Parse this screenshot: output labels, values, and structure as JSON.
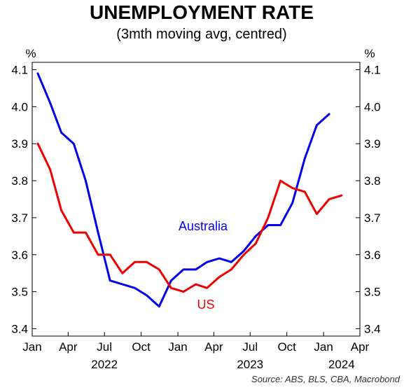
{
  "chart_data": {
    "type": "line",
    "title": "UNEMPLOYMENT RATE",
    "subtitle": "(3mth moving avg, centred)",
    "ylabel_left": "%",
    "ylabel_right": "%",
    "source": "Source: ABS, BLS, CBA, Macrobond",
    "ylim": [
      3.38,
      4.12
    ],
    "yticks": [
      3.4,
      3.5,
      3.6,
      3.7,
      3.8,
      3.9,
      4.0,
      4.1
    ],
    "ytick_labels": [
      "3.4",
      "3.5",
      "3.6",
      "3.7",
      "3.8",
      "3.9",
      "4.0",
      "4.1"
    ],
    "xlim": [
      "2022-01-01",
      "2024-04-01"
    ],
    "xticks": [
      {
        "date": "2022-01-01",
        "label": "Jan"
      },
      {
        "date": "2022-04-01",
        "label": "Apr"
      },
      {
        "date": "2022-07-01",
        "label": "Jul"
      },
      {
        "date": "2022-10-01",
        "label": "Oct"
      },
      {
        "date": "2023-01-01",
        "label": "Jan"
      },
      {
        "date": "2023-04-01",
        "label": "Apr"
      },
      {
        "date": "2023-07-01",
        "label": "Jul"
      },
      {
        "date": "2023-10-01",
        "label": "Oct"
      },
      {
        "date": "2024-01-01",
        "label": "Jan"
      },
      {
        "date": "2024-04-01",
        "label": "Apr"
      }
    ],
    "year_labels": [
      {
        "date": "2022-07-01",
        "label": "2022"
      },
      {
        "date": "2023-07-01",
        "label": "2023"
      },
      {
        "date": "2024-02-15",
        "label": "2024"
      }
    ],
    "grid": false,
    "legend": "inline labels",
    "x": [
      "2022-01-15",
      "2022-02-15",
      "2022-03-15",
      "2022-04-15",
      "2022-05-15",
      "2022-06-15",
      "2022-07-15",
      "2022-08-15",
      "2022-09-15",
      "2022-10-15",
      "2022-11-15",
      "2022-12-15",
      "2023-01-15",
      "2023-02-15",
      "2023-03-15",
      "2023-04-15",
      "2023-05-15",
      "2023-06-15",
      "2023-07-15",
      "2023-08-15",
      "2023-09-15",
      "2023-10-15",
      "2023-11-15",
      "2023-12-15",
      "2024-01-15",
      "2024-02-15"
    ],
    "series": [
      {
        "name": "Australia",
        "color": "#0000ee",
        "values": [
          4.09,
          4.01,
          3.93,
          3.9,
          3.8,
          3.66,
          3.53,
          3.52,
          3.51,
          3.49,
          3.46,
          3.53,
          3.56,
          3.56,
          3.58,
          3.59,
          3.58,
          3.61,
          3.65,
          3.68,
          3.68,
          3.74,
          3.86,
          3.95,
          3.98,
          null
        ]
      },
      {
        "name": "US",
        "color": "#ee0000",
        "values": [
          3.9,
          3.83,
          3.72,
          3.66,
          3.66,
          3.6,
          3.6,
          3.55,
          3.58,
          3.58,
          3.56,
          3.51,
          3.5,
          3.52,
          3.51,
          3.54,
          3.56,
          3.6,
          3.63,
          3.7,
          3.8,
          3.78,
          3.77,
          3.71,
          3.75,
          3.76
        ]
      }
    ]
  }
}
